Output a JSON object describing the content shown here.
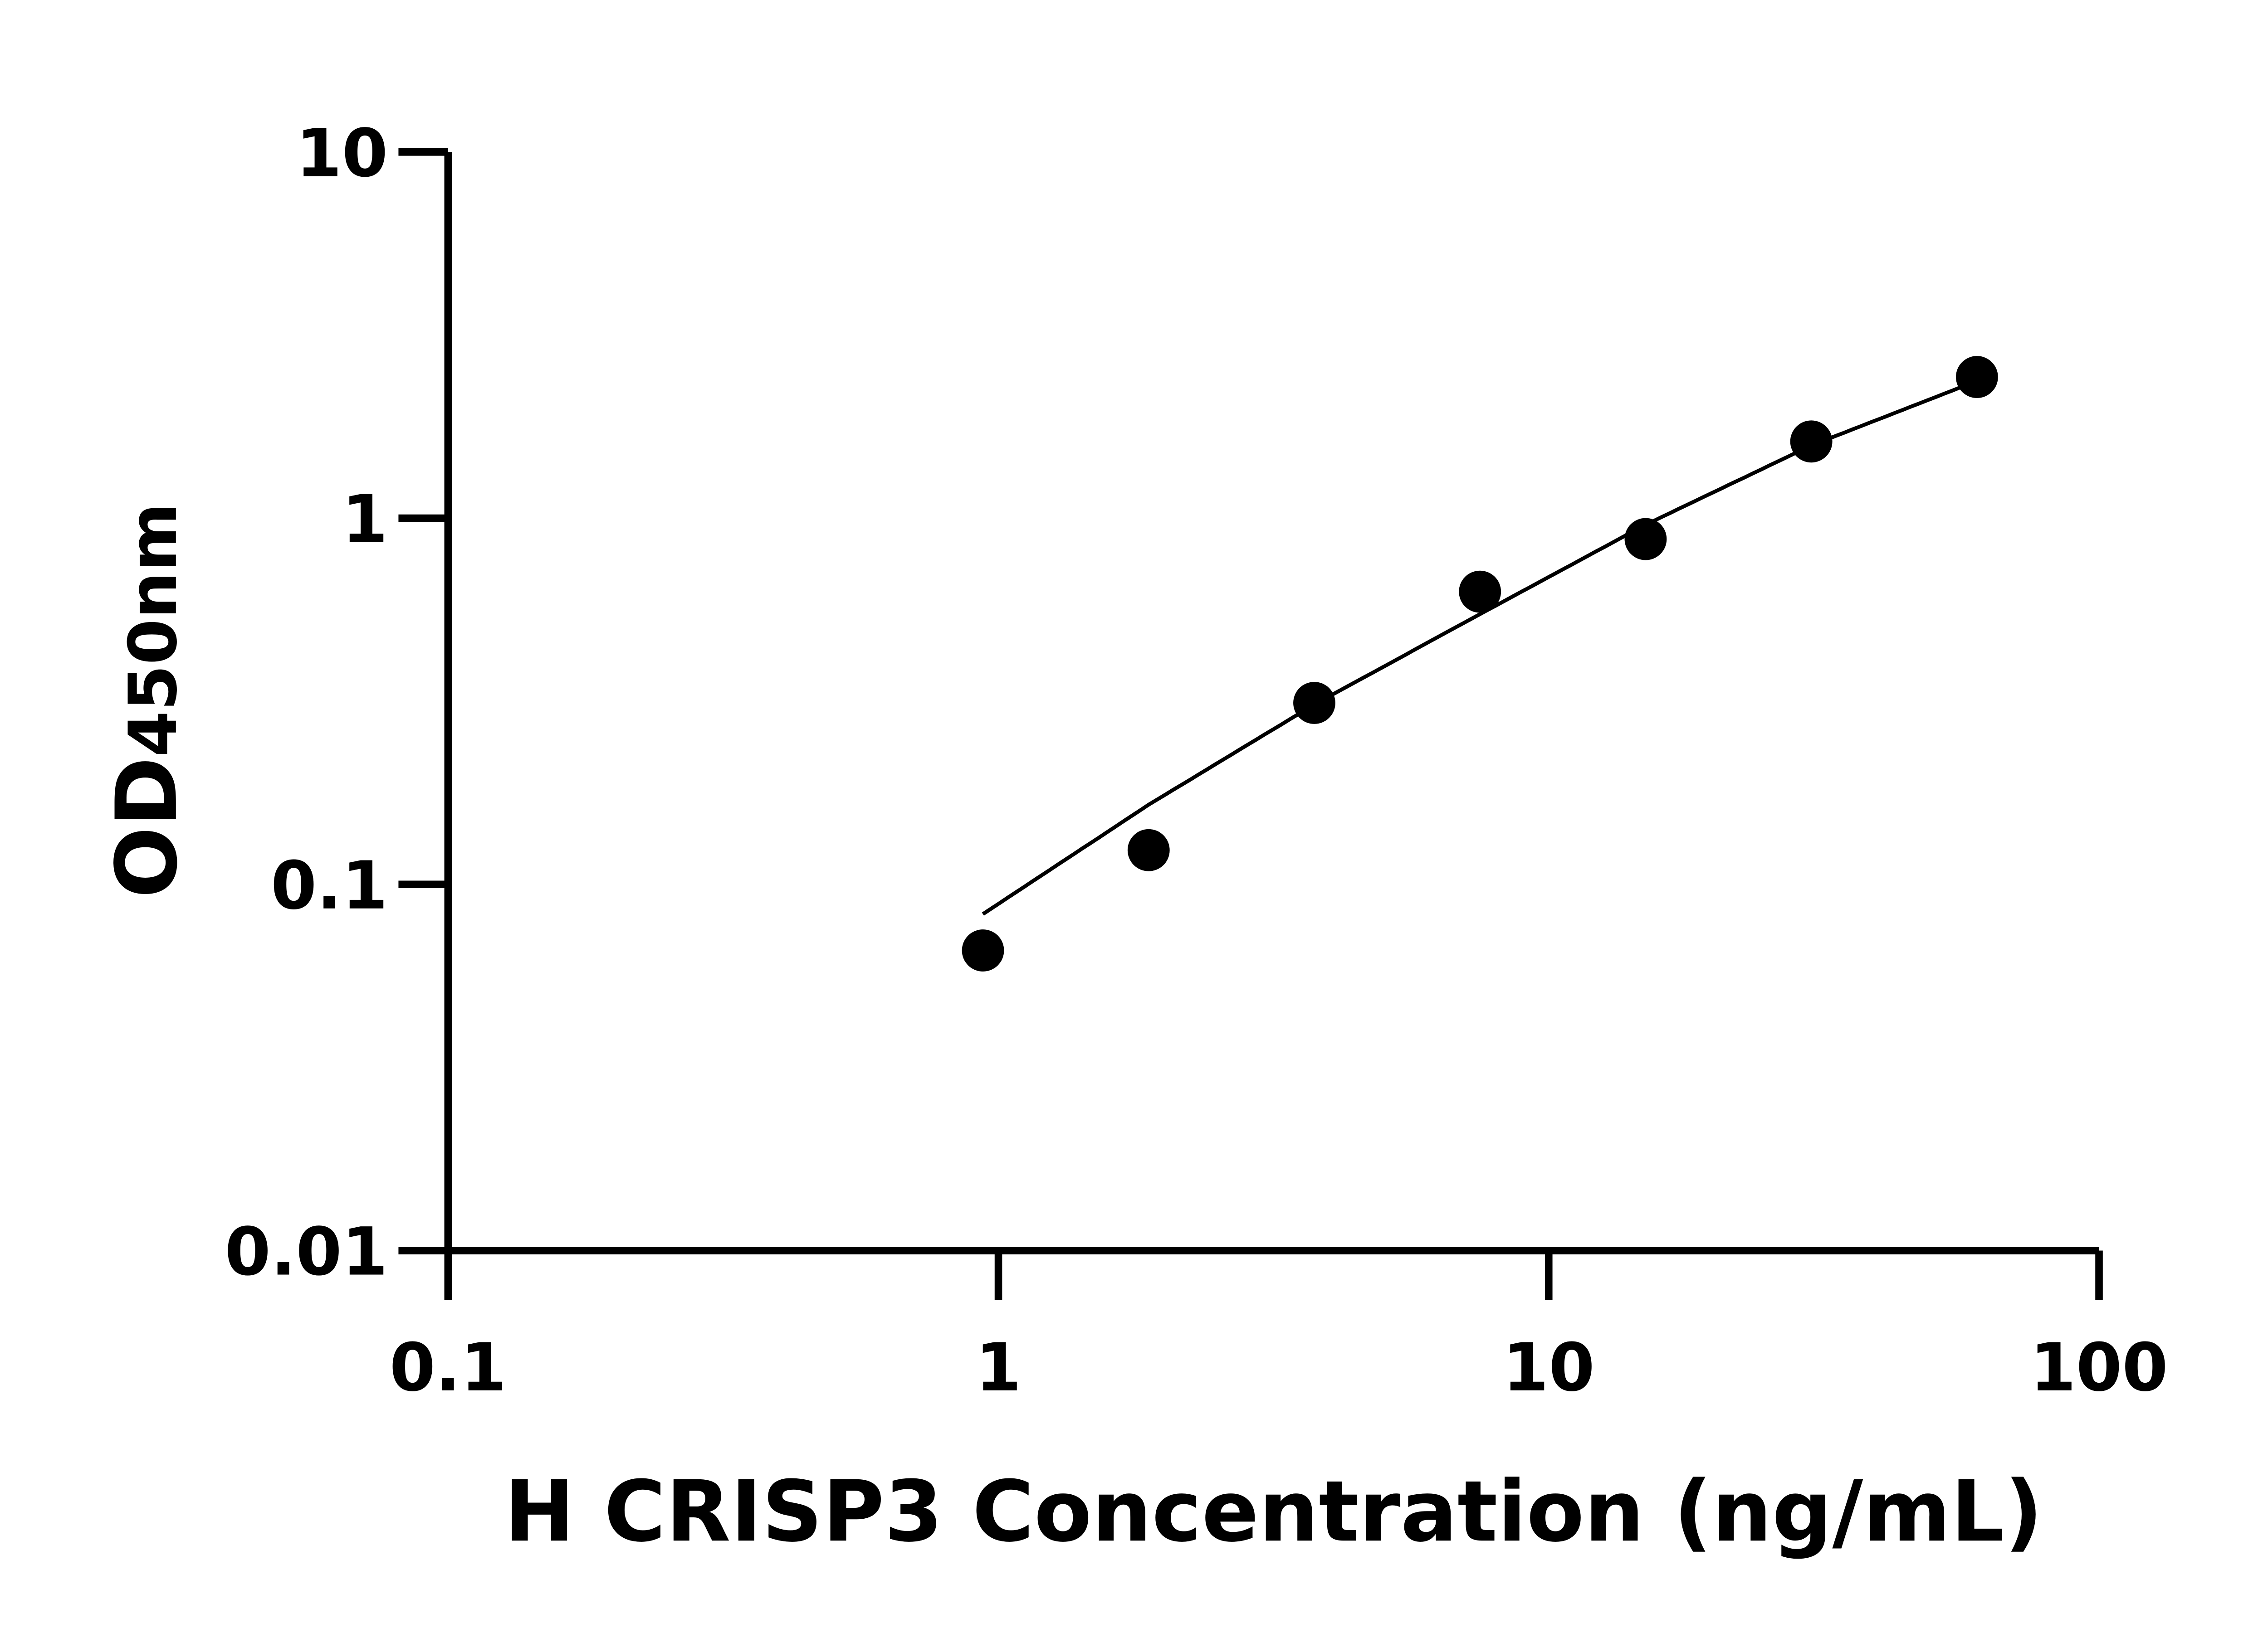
{
  "chart_data": {
    "type": "scatter",
    "title": "",
    "xlabel": "H CRISP3 Concentration (ng/mL)",
    "ylabel_main": "OD",
    "ylabel_sub": "450nm",
    "x_scale": "log",
    "y_scale": "log",
    "xlim": [
      0.1,
      100
    ],
    "ylim": [
      0.01,
      10
    ],
    "x_ticks": [
      0.1,
      1,
      10,
      100
    ],
    "x_tick_labels": [
      "0.1",
      "1",
      "10",
      "100"
    ],
    "y_ticks": [
      0.01,
      0.1,
      1,
      10
    ],
    "y_tick_labels": [
      "0.01",
      "0.1",
      "1",
      "10"
    ],
    "grid": false,
    "points": {
      "x": [
        0.9375,
        1.875,
        3.75,
        7.5,
        15,
        30,
        60
      ],
      "y": [
        0.066,
        0.124,
        0.313,
        0.63,
        0.877,
        1.62,
        2.43
      ]
    },
    "fit_curve": {
      "x": [
        0.9375,
        1.875,
        3.75,
        7.5,
        15,
        30,
        60
      ],
      "y": [
        0.083,
        0.165,
        0.31,
        0.547,
        0.96,
        1.58,
        2.37
      ]
    },
    "colors": {
      "marker": "#000000",
      "line": "#000000",
      "axis": "#000000"
    }
  }
}
